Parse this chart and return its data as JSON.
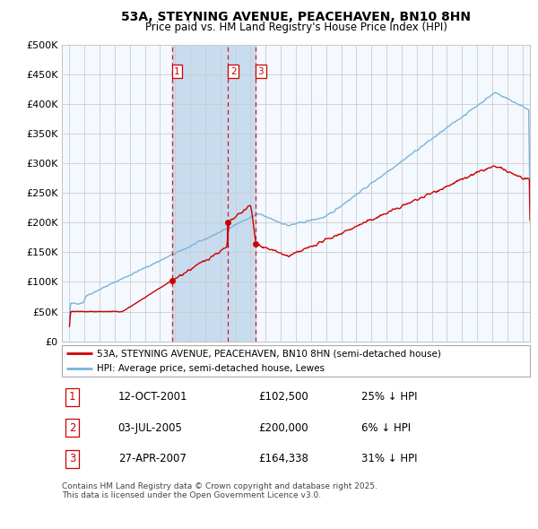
{
  "title": "53A, STEYNING AVENUE, PEACEHAVEN, BN10 8HN",
  "subtitle": "Price paid vs. HM Land Registry's House Price Index (HPI)",
  "hpi_color": "#7ab4d8",
  "price_color": "#cc0000",
  "background_color": "#ffffff",
  "plot_bg_color": "#f4f8ff",
  "grid_color": "#cccccc",
  "span_color": "#c8dcf0",
  "transactions": [
    {
      "num": 1,
      "date_label": "12-OCT-2001",
      "price": 102500,
      "pct": "25%",
      "x_year": 2001.78
    },
    {
      "num": 2,
      "date_label": "03-JUL-2005",
      "price": 200000,
      "pct": "6%",
      "x_year": 2005.5
    },
    {
      "num": 3,
      "date_label": "27-APR-2007",
      "price": 164338,
      "pct": "31%",
      "x_year": 2007.32
    }
  ],
  "legend_line1": "53A, STEYNING AVENUE, PEACEHAVEN, BN10 8HN (semi-detached house)",
  "legend_line2": "HPI: Average price, semi-detached house, Lewes",
  "footer": "Contains HM Land Registry data © Crown copyright and database right 2025.\nThis data is licensed under the Open Government Licence v3.0.",
  "table_rows": [
    [
      "1",
      "12-OCT-2001",
      "£102,500",
      "25% ↓ HPI"
    ],
    [
      "2",
      "03-JUL-2005",
      "£200,000",
      "6% ↓ HPI"
    ],
    [
      "3",
      "27-APR-2007",
      "£164,338",
      "31% ↓ HPI"
    ]
  ],
  "xlim": [
    1994.5,
    2025.5
  ],
  "ylim": [
    0,
    500000
  ],
  "yticks": [
    0,
    50000,
    100000,
    150000,
    200000,
    250000,
    300000,
    350000,
    400000,
    450000,
    500000
  ],
  "ytick_labels": [
    "£0",
    "£50K",
    "£100K",
    "£150K",
    "£200K",
    "£250K",
    "£300K",
    "£350K",
    "£400K",
    "£450K",
    "£500K"
  ]
}
